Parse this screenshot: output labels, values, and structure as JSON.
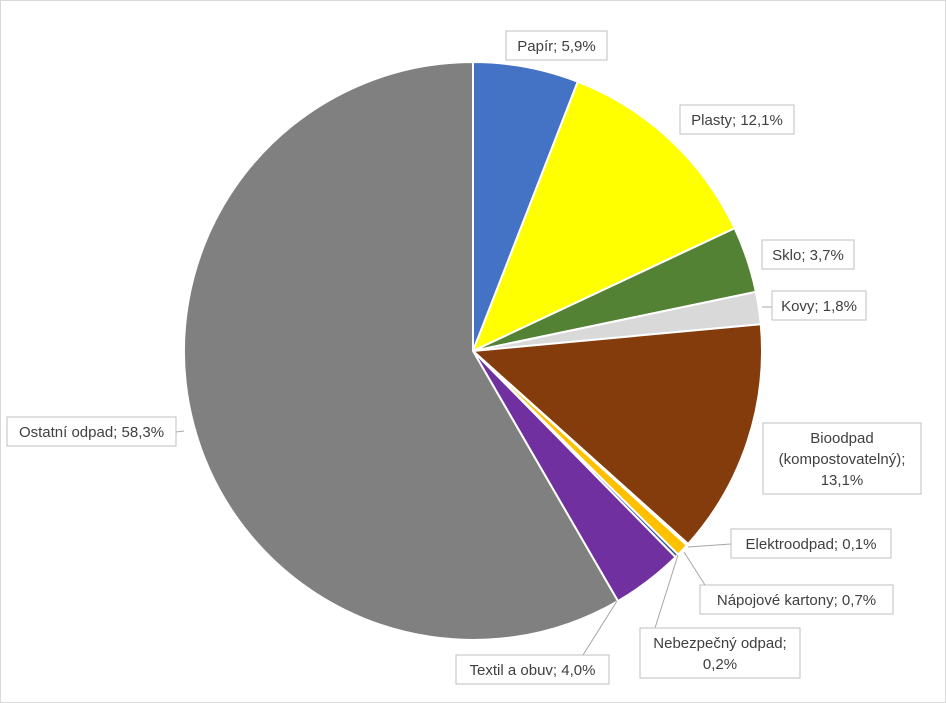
{
  "chart_data": {
    "type": "pie",
    "title": "",
    "legend": "none",
    "slices": [
      {
        "name": "Papír",
        "value": 5.9,
        "label": "Papír; 5,9%",
        "color": "#4472C4"
      },
      {
        "name": "Plasty",
        "value": 12.1,
        "label": "Plasty; 12,1%",
        "color": "#FFFF00"
      },
      {
        "name": "Sklo",
        "value": 3.7,
        "label": "Sklo; 3,7%",
        "color": "#548235"
      },
      {
        "name": "Kovy",
        "value": 1.8,
        "label": "Kovy; 1,8%",
        "color": "#D9D9D9"
      },
      {
        "name": "Bioodpad (kompostovatelný)",
        "value": 13.1,
        "label": "Bioodpad (kompostovatelný); 13,1%",
        "color": "#843C0C"
      },
      {
        "name": "Elektroodpad",
        "value": 0.1,
        "label": "Elektroodpad; 0,1%",
        "color": "#C00000"
      },
      {
        "name": "Nápojové kartony",
        "value": 0.7,
        "label": "Nápojové kartony; 0,7%",
        "color": "#FFC000"
      },
      {
        "name": "Nebezpečný odpad",
        "value": 0.2,
        "label": "Nebezpečný odpad; 0,2%",
        "color": "#2F5597"
      },
      {
        "name": "Textil a obuv",
        "value": 4.0,
        "label": "Textil a obuv; 4,0%",
        "color": "#7030A0"
      },
      {
        "name": "Ostatní odpad",
        "value": 58.3,
        "label": "Ostatní odpad; 58,3%",
        "color": "#808080"
      }
    ]
  }
}
